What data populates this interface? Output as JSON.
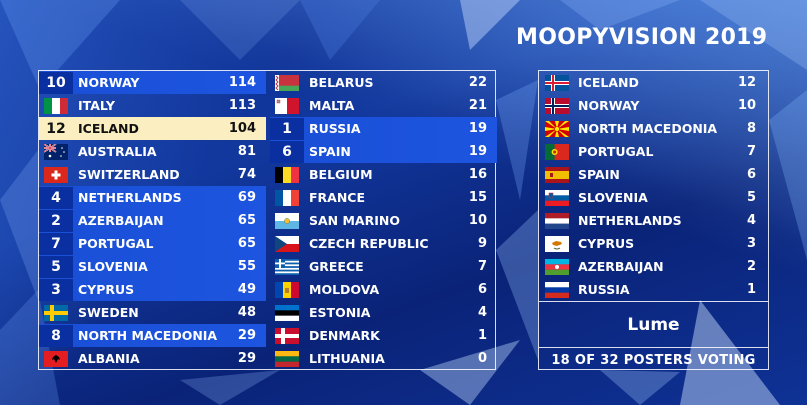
{
  "title": "MOOPYVISION 2019",
  "scoreboard": {
    "left_column": [
      {
        "badge": "10",
        "country": "NORWAY",
        "score": "114",
        "flag": "norway-flag",
        "style": "hl"
      },
      {
        "badge": "",
        "country": "ITALY",
        "score": "113",
        "flag": "italy-flag",
        "style": ""
      },
      {
        "badge": "12",
        "country": "ICELAND",
        "score": "104",
        "flag": "iceland-flag",
        "style": "gold"
      },
      {
        "badge": "",
        "country": "AUSTRALIA",
        "score": "81",
        "flag": "australia-flag",
        "style": ""
      },
      {
        "badge": "",
        "country": "SWITZERLAND",
        "score": "74",
        "flag": "switzerland-flag",
        "style": ""
      },
      {
        "badge": "4",
        "country": "NETHERLANDS",
        "score": "69",
        "flag": "netherlands-flag",
        "style": "hl"
      },
      {
        "badge": "2",
        "country": "AZERBAIJAN",
        "score": "65",
        "flag": "azerbaijan-flag",
        "style": "hl"
      },
      {
        "badge": "7",
        "country": "PORTUGAL",
        "score": "65",
        "flag": "portugal-flag",
        "style": "hl"
      },
      {
        "badge": "5",
        "country": "SLOVENIA",
        "score": "55",
        "flag": "slovenia-flag",
        "style": "hl"
      },
      {
        "badge": "3",
        "country": "CYPRUS",
        "score": "49",
        "flag": "cyprus-flag",
        "style": "hl"
      },
      {
        "badge": "",
        "country": "SWEDEN",
        "score": "48",
        "flag": "sweden-flag",
        "style": ""
      },
      {
        "badge": "8",
        "country": "NORTH MACEDONIA",
        "score": "29",
        "flag": "north-macedonia-flag",
        "style": "hl"
      },
      {
        "badge": "",
        "country": "ALBANIA",
        "score": "29",
        "flag": "albania-flag",
        "style": ""
      }
    ],
    "right_column": [
      {
        "badge": "",
        "country": "BELARUS",
        "score": "22",
        "flag": "belarus-flag",
        "style": ""
      },
      {
        "badge": "",
        "country": "MALTA",
        "score": "21",
        "flag": "malta-flag",
        "style": ""
      },
      {
        "badge": "1",
        "country": "RUSSIA",
        "score": "19",
        "flag": "russia-flag",
        "style": "hl"
      },
      {
        "badge": "6",
        "country": "SPAIN",
        "score": "19",
        "flag": "spain-flag",
        "style": "hl"
      },
      {
        "badge": "",
        "country": "BELGIUM",
        "score": "16",
        "flag": "belgium-flag",
        "style": ""
      },
      {
        "badge": "",
        "country": "FRANCE",
        "score": "15",
        "flag": "france-flag",
        "style": ""
      },
      {
        "badge": "",
        "country": "SAN MARINO",
        "score": "10",
        "flag": "san-marino-flag",
        "style": ""
      },
      {
        "badge": "",
        "country": "CZECH REPUBLIC",
        "score": "9",
        "flag": "czech-flag",
        "style": ""
      },
      {
        "badge": "",
        "country": "GREECE",
        "score": "7",
        "flag": "greece-flag",
        "style": ""
      },
      {
        "badge": "",
        "country": "MOLDOVA",
        "score": "6",
        "flag": "moldova-flag",
        "style": ""
      },
      {
        "badge": "",
        "country": "ESTONIA",
        "score": "4",
        "flag": "estonia-flag",
        "style": ""
      },
      {
        "badge": "",
        "country": "DENMARK",
        "score": "1",
        "flag": "denmark-flag",
        "style": ""
      },
      {
        "badge": "",
        "country": "LITHUANIA",
        "score": "0",
        "flag": "lithuania-flag",
        "style": ""
      }
    ]
  },
  "votes_panel": {
    "votes": [
      {
        "country": "ICELAND",
        "points": "12",
        "flag": "iceland-flag"
      },
      {
        "country": "NORWAY",
        "points": "10",
        "flag": "norway-flag"
      },
      {
        "country": "NORTH MACEDONIA",
        "points": "8",
        "flag": "north-macedonia-flag"
      },
      {
        "country": "PORTUGAL",
        "points": "7",
        "flag": "portugal-flag"
      },
      {
        "country": "SPAIN",
        "points": "6",
        "flag": "spain-flag"
      },
      {
        "country": "SLOVENIA",
        "points": "5",
        "flag": "slovenia-flag"
      },
      {
        "country": "NETHERLANDS",
        "points": "4",
        "flag": "netherlands-flag"
      },
      {
        "country": "CYPRUS",
        "points": "3",
        "flag": "cyprus-flag"
      },
      {
        "country": "AZERBAIJAN",
        "points": "2",
        "flag": "azerbaijan-flag"
      },
      {
        "country": "RUSSIA",
        "points": "1",
        "flag": "russia-flag"
      }
    ],
    "voter_name": "Lume",
    "voting_status": "18 OF 32 POSTERS VOTING"
  },
  "colors": {
    "highlight_row": "#1d55e0",
    "badge": "#0a2fa0",
    "gold_row": "#fbefc2",
    "background": "#0b2a8c"
  }
}
